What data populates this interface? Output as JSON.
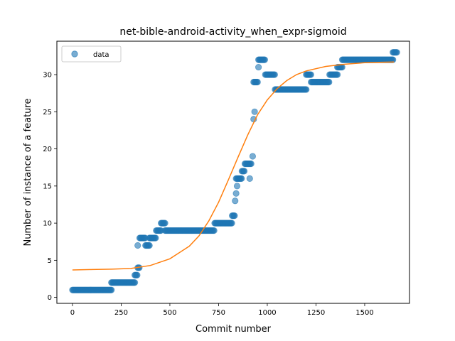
{
  "chart_data": {
    "type": "scatter",
    "title": "net-bible-android-activity_when_expr-sigmoid",
    "xlabel": "Commit number",
    "ylabel": "Number of instance of a feature",
    "xlim": [
      -80,
      1730
    ],
    "ylim": [
      -0.8,
      34.5
    ],
    "xticks": [
      0,
      250,
      500,
      750,
      1000,
      1250,
      1500
    ],
    "yticks": [
      0,
      5,
      10,
      15,
      20,
      25,
      30
    ],
    "grid": false,
    "legend": {
      "position": "upper-left",
      "entries": [
        "data"
      ]
    },
    "colors": {
      "data": "#1f77b4",
      "fit": "#ff7f0e"
    },
    "series": [
      {
        "name": "data",
        "kind": "scatter",
        "segments": [
          {
            "x_start": 0,
            "x_end": 200,
            "y": 1
          },
          {
            "x_start": 200,
            "x_end": 320,
            "y": 2
          },
          {
            "x_start": 320,
            "x_end": 335,
            "y": 3
          },
          {
            "x_start": 335,
            "x_end": 345,
            "y": 4
          },
          {
            "x_start": 345,
            "x_end": 375,
            "y": 8
          },
          {
            "x_start": 375,
            "x_end": 395,
            "y": 7
          },
          {
            "x_start": 395,
            "x_end": 430,
            "y": 8
          },
          {
            "x_start": 430,
            "x_end": 455,
            "y": 9
          },
          {
            "x_start": 455,
            "x_end": 475,
            "y": 10
          },
          {
            "x_start": 475,
            "x_end": 730,
            "y": 9
          },
          {
            "x_start": 730,
            "x_end": 820,
            "y": 10
          },
          {
            "x_start": 820,
            "x_end": 835,
            "y": 11
          },
          {
            "x_start": 840,
            "x_end": 870,
            "y": 16
          },
          {
            "x_start": 870,
            "x_end": 885,
            "y": 17
          },
          {
            "x_start": 885,
            "x_end": 920,
            "y": 18
          },
          {
            "x_start": 930,
            "x_end": 950,
            "y": 29
          },
          {
            "x_start": 955,
            "x_end": 990,
            "y": 32
          },
          {
            "x_start": 990,
            "x_end": 1040,
            "y": 30
          },
          {
            "x_start": 1040,
            "x_end": 1200,
            "y": 28
          },
          {
            "x_start": 1200,
            "x_end": 1225,
            "y": 30
          },
          {
            "x_start": 1225,
            "x_end": 1320,
            "y": 29
          },
          {
            "x_start": 1320,
            "x_end": 1360,
            "y": 30
          },
          {
            "x_start": 1360,
            "x_end": 1385,
            "y": 31
          },
          {
            "x_start": 1385,
            "x_end": 1645,
            "y": 32
          },
          {
            "x_start": 1645,
            "x_end": 1665,
            "y": 33
          }
        ],
        "points": [
          [
            335,
            7
          ],
          [
            835,
            13
          ],
          [
            840,
            14
          ],
          [
            845,
            15
          ],
          [
            910,
            16
          ],
          [
            925,
            19
          ],
          [
            930,
            24
          ],
          [
            935,
            25
          ],
          [
            955,
            31
          ]
        ]
      },
      {
        "name": "fit",
        "kind": "line",
        "x": [
          0,
          100,
          200,
          300,
          400,
          500,
          600,
          650,
          700,
          750,
          800,
          850,
          900,
          950,
          1000,
          1050,
          1100,
          1150,
          1200,
          1300,
          1400,
          1500,
          1650
        ],
        "y": [
          3.7,
          3.75,
          3.8,
          3.9,
          4.3,
          5.2,
          6.9,
          8.3,
          10.3,
          12.8,
          15.8,
          18.9,
          21.9,
          24.6,
          26.6,
          28.1,
          29.2,
          30.0,
          30.5,
          31.1,
          31.4,
          31.6,
          31.7
        ]
      }
    ]
  }
}
